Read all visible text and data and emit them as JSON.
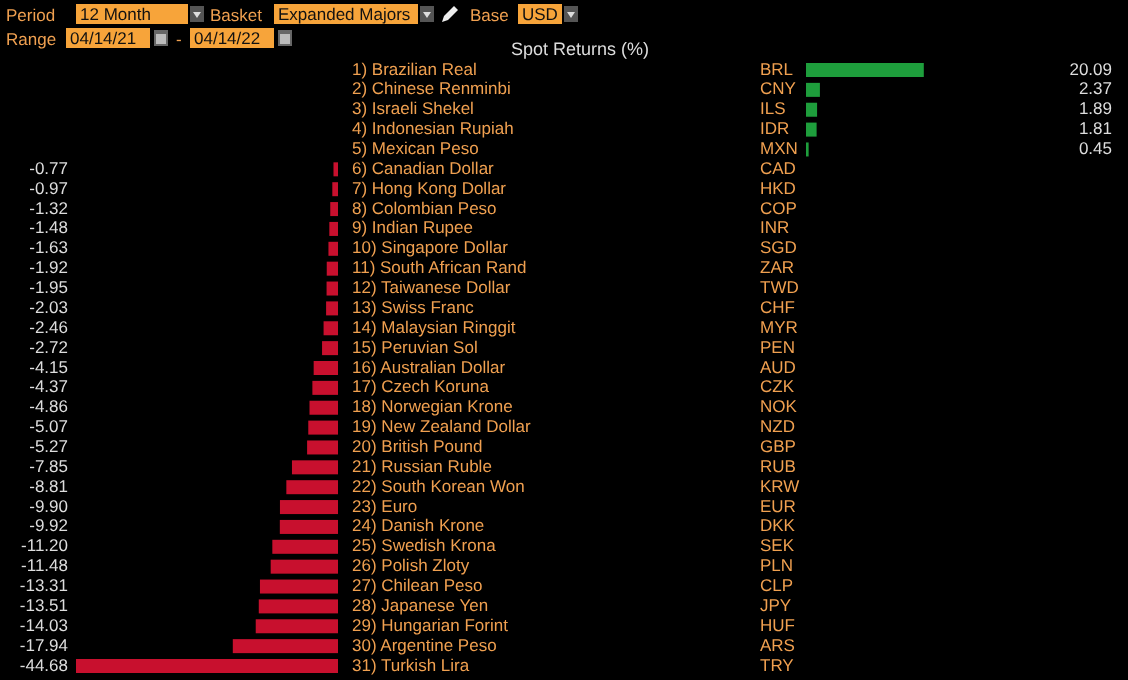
{
  "chart_data": [
    {
      "type": "bar",
      "orientation": "horizontal",
      "title": "Spot Returns (%)",
      "annotations": [
        "Period",
        "12 Month",
        "Basket",
        "Expanded Majors",
        "Base",
        "USD",
        "Range",
        "04/14/21",
        "-",
        "04/14/22"
      ],
      "categories": [
        "1) Brazilian Real",
        "2) Chinese Renminbi",
        "3) Israeli Shekel",
        "4) Indonesian Rupiah",
        "5) Mexican Peso"
      ],
      "y2_categories": [
        "BRL",
        "CNY",
        "ILS",
        "IDR",
        "MXN"
      ],
      "values": [
        20.09,
        2.37,
        1.89,
        1.81,
        0.45
      ],
      "value_labels": [
        "20.09",
        "2.37",
        "1.89",
        "1.81",
        "0.45"
      ],
      "color": "#1e9e3c"
    },
    {
      "type": "bar",
      "orientation": "horizontal",
      "categories": [
        "6) Canadian Dollar",
        "7) Hong Kong Dollar",
        "8) Colombian Peso",
        "9) Indian Rupee",
        "10) Singapore Dollar",
        "11) South African Rand",
        "12) Taiwanese Dollar",
        "13) Swiss Franc",
        "14) Malaysian Ringgit",
        "15) Peruvian Sol",
        "16) Australian Dollar",
        "17) Czech Koruna",
        "18) Norwegian Krone",
        "19) New Zealand Dollar",
        "20) British Pound",
        "21) Russian Ruble",
        "22) South Korean Won",
        "23) Euro",
        "24) Danish Krone",
        "25) Swedish Krona",
        "26) Polish Zloty",
        "27) Chilean Peso",
        "28) Japanese Yen",
        "29) Hungarian Forint",
        "30) Argentine Peso",
        "31) Turkish Lira"
      ],
      "y2_categories": [
        "CAD",
        "HKD",
        "COP",
        "INR",
        "SGD",
        "ZAR",
        "TWD",
        "CHF",
        "MYR",
        "PEN",
        "AUD",
        "CZK",
        "NOK",
        "NZD",
        "GBP",
        "RUB",
        "KRW",
        "EUR",
        "DKK",
        "SEK",
        "PLN",
        "CLP",
        "JPY",
        "HUF",
        "ARS",
        "TRY"
      ],
      "values": [
        -0.77,
        -0.97,
        -1.32,
        -1.48,
        -1.63,
        -1.92,
        -1.95,
        -2.03,
        -2.46,
        -2.72,
        -4.15,
        -4.37,
        -4.86,
        -5.07,
        -5.27,
        -7.85,
        -8.81,
        -9.9,
        -9.92,
        -11.2,
        -11.48,
        -13.31,
        -13.51,
        -14.03,
        -17.94,
        -44.68
      ],
      "value_labels": [
        "-0.77",
        "-0.97",
        "-1.32",
        "-1.48",
        "-1.63",
        "-1.92",
        "-1.95",
        "-2.03",
        "-2.46",
        "-2.72",
        "-4.15",
        "-4.37",
        "-4.86",
        "-5.07",
        "-5.27",
        "-7.85",
        "-8.81",
        "-9.90",
        "-9.92",
        "-11.20",
        "-11.48",
        "-13.31",
        "-13.51",
        "-14.03",
        "-17.94",
        "-44.68"
      ],
      "color": "#c8102e"
    }
  ]
}
